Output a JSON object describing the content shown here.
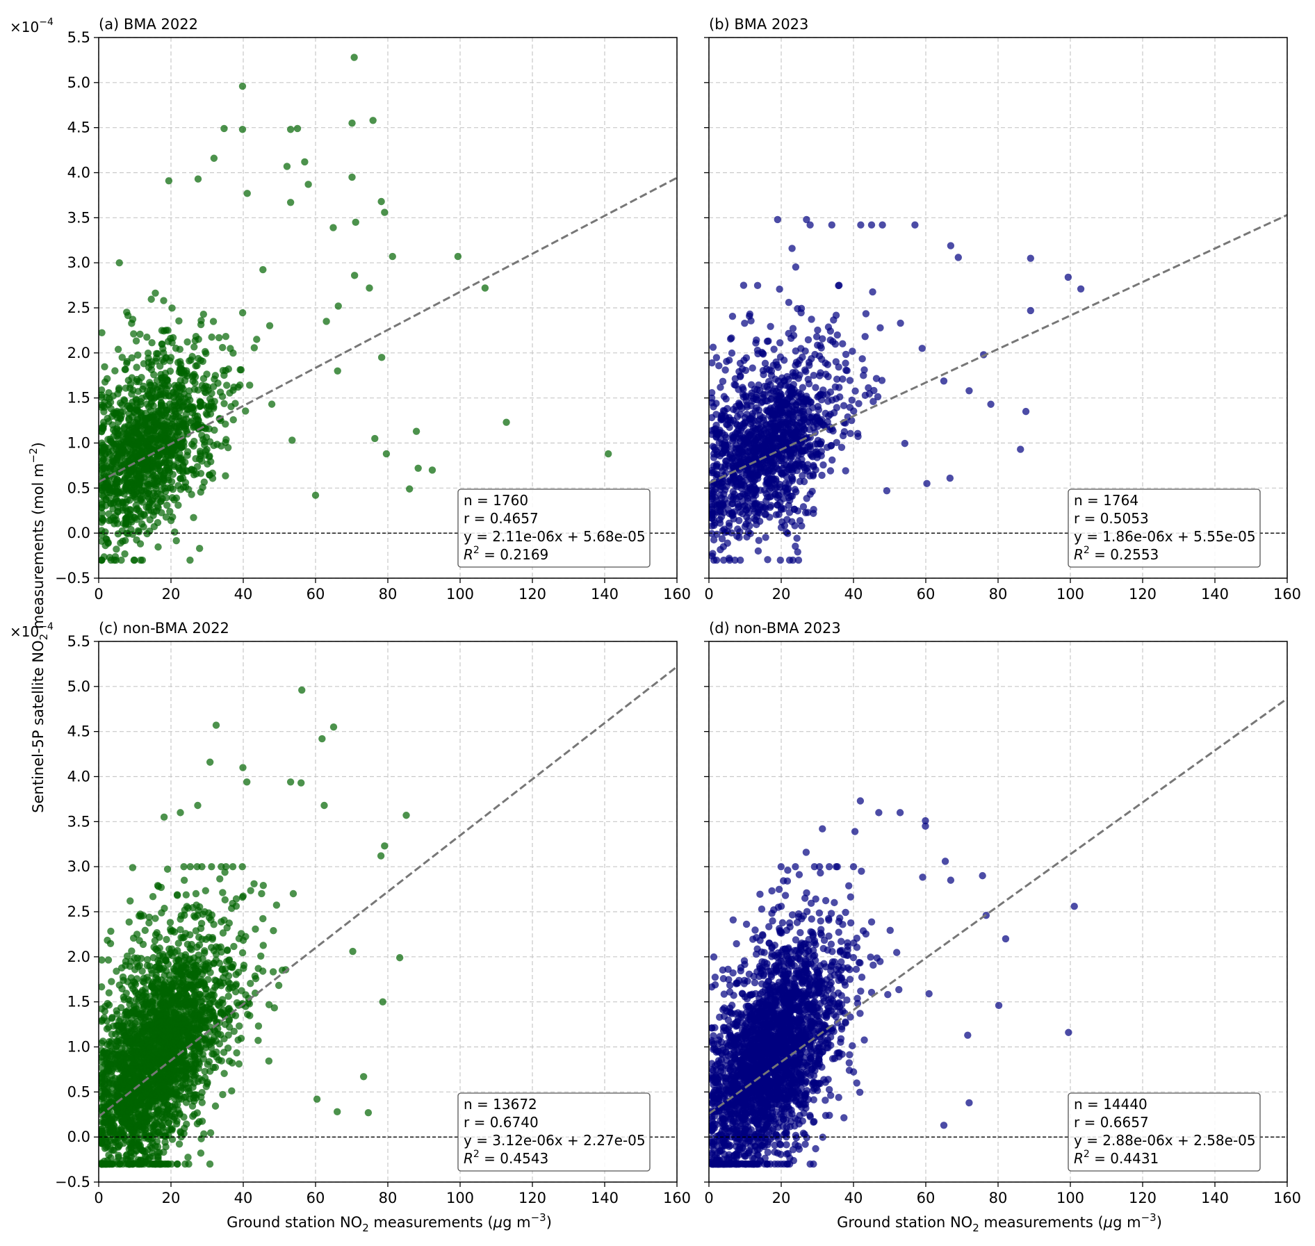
{
  "figure": {
    "y_scale_label_base": "×10",
    "y_scale_label_exp": "−4",
    "ylabel_prefix": "Sentinel-5P satellite NO",
    "ylabel_sub": "2",
    "ylabel_suffix": " measurements (mol m",
    "ylabel_exp": "−2",
    "ylabel_end": ")",
    "xlabel_prefix": "Ground station NO",
    "xlabel_sub": "2",
    "xlabel_suffix": " measurements (",
    "xlabel_mu": "μ",
    "xlabel_unit": "g m",
    "xlabel_exp": "−3",
    "xlabel_end": ")"
  },
  "chart_data": [
    {
      "type": "scatter",
      "panel_title": "(a) BMA 2022",
      "color": "#006400",
      "xlim": [
        0,
        160
      ],
      "ylim": [
        -0.5,
        5.5
      ],
      "y_multiplier": "1e-4",
      "xticks": [
        0,
        20,
        40,
        60,
        80,
        100,
        120,
        140,
        160
      ],
      "yticks": [
        -0.5,
        0.0,
        0.5,
        1.0,
        1.5,
        2.0,
        2.5,
        3.0,
        3.5,
        4.0,
        4.5,
        5.0,
        5.5
      ],
      "grid": true,
      "stats": {
        "n": "n = 1760",
        "r": "r = 0.4657",
        "eq": "y = 2.11e-06x + 5.68e-05",
        "r2_label": "R",
        "r2_exp": "2",
        "r2_value": " = 0.2169"
      },
      "fit": {
        "slope": 0.0211,
        "intercept": 0.568
      },
      "n_points": 1760,
      "points": [
        [
          70.7,
          5.28
        ],
        [
          39.8,
          4.96
        ],
        [
          75.9,
          4.58
        ],
        [
          70.1,
          4.55
        ],
        [
          34.7,
          4.49
        ],
        [
          39.8,
          4.48
        ],
        [
          53.1,
          4.48
        ],
        [
          55.0,
          4.49
        ],
        [
          57.0,
          4.12
        ],
        [
          31.9,
          4.16
        ],
        [
          52.1,
          4.07
        ],
        [
          70.1,
          3.95
        ],
        [
          27.5,
          3.93
        ],
        [
          58.0,
          3.87
        ],
        [
          19.4,
          3.91
        ],
        [
          41.1,
          3.77
        ],
        [
          53.1,
          3.67
        ],
        [
          79.1,
          3.56
        ],
        [
          78.2,
          3.68
        ],
        [
          64.9,
          3.39
        ],
        [
          71.1,
          3.45
        ],
        [
          99.4,
          3.07
        ],
        [
          81.3,
          3.07
        ],
        [
          106.9,
          2.72
        ],
        [
          112.8,
          1.23
        ],
        [
          141.0,
          0.88
        ],
        [
          92.3,
          0.7
        ],
        [
          87.9,
          1.13
        ],
        [
          86.0,
          0.49
        ],
        [
          78.3,
          1.95
        ],
        [
          74.9,
          2.72
        ],
        [
          70.8,
          2.86
        ],
        [
          66.3,
          2.52
        ],
        [
          63.0,
          2.35
        ],
        [
          66.1,
          1.8
        ],
        [
          76.4,
          1.05
        ],
        [
          79.6,
          0.88
        ],
        [
          88.4,
          0.72
        ],
        [
          60.0,
          0.42
        ]
      ],
      "cluster": {
        "cx": 14,
        "cy": 0.85,
        "sx": 10,
        "sy": 0.45,
        "count": 1300,
        "seed": 11
      }
    },
    {
      "type": "scatter",
      "panel_title": "(b) BMA 2023",
      "color": "#000080",
      "xlim": [
        0,
        160
      ],
      "ylim": [
        -0.5,
        5.5
      ],
      "y_multiplier": "1e-4",
      "xticks": [
        0,
        20,
        40,
        60,
        80,
        100,
        120,
        140,
        160
      ],
      "yticks": [
        -0.5,
        0.0,
        0.5,
        1.0,
        1.5,
        2.0,
        2.5,
        3.0,
        3.5,
        4.0,
        4.5,
        5.0,
        5.5
      ],
      "grid": true,
      "stats": {
        "n": "n = 1764",
        "r": "r = 0.5053",
        "eq": "y = 1.86e-06x + 5.55e-05",
        "r2_label": "R",
        "r2_exp": "2",
        "r2_value": " = 0.2553"
      },
      "fit": {
        "slope": 0.0186,
        "intercept": 0.555
      },
      "n_points": 1764,
      "points": [
        [
          19.0,
          3.48
        ],
        [
          27.0,
          3.48
        ],
        [
          34.0,
          3.42
        ],
        [
          42.0,
          3.42
        ],
        [
          45.0,
          3.42
        ],
        [
          48.0,
          3.42
        ],
        [
          57.0,
          3.42
        ],
        [
          23.0,
          3.16
        ],
        [
          28.0,
          3.42
        ],
        [
          66.9,
          3.19
        ],
        [
          69.0,
          3.06
        ],
        [
          89.0,
          3.05
        ],
        [
          99.4,
          2.84
        ],
        [
          102.9,
          2.71
        ],
        [
          89.0,
          2.47
        ],
        [
          86.2,
          0.93
        ],
        [
          87.7,
          1.35
        ],
        [
          78.0,
          1.43
        ],
        [
          76.0,
          1.98
        ],
        [
          66.7,
          0.61
        ],
        [
          60.3,
          0.55
        ],
        [
          72.0,
          1.58
        ],
        [
          59.0,
          2.05
        ],
        [
          53.0,
          2.33
        ],
        [
          9.6,
          2.75
        ],
        [
          22.1,
          2.56
        ],
        [
          36.0,
          2.75
        ]
      ],
      "cluster": {
        "cx": 16,
        "cy": 0.85,
        "sx": 11,
        "sy": 0.45,
        "count": 1300,
        "seed": 23
      }
    },
    {
      "type": "scatter",
      "panel_title": "(c) non-BMA 2022",
      "color": "#006400",
      "xlim": [
        0,
        160
      ],
      "ylim": [
        -0.5,
        5.5
      ],
      "y_multiplier": "1e-4",
      "xticks": [
        0,
        20,
        40,
        60,
        80,
        100,
        120,
        140,
        160
      ],
      "yticks": [
        -0.5,
        0.0,
        0.5,
        1.0,
        1.5,
        2.0,
        2.5,
        3.0,
        3.5,
        4.0,
        4.5,
        5.0,
        5.5
      ],
      "grid": true,
      "stats": {
        "n": "n = 13672",
        "r": "r = 0.6740",
        "eq": "y = 3.12e-06x + 2.27e-05",
        "r2_label": "R",
        "r2_exp": "2",
        "r2_value": " = 0.4543"
      },
      "fit": {
        "slope": 0.0312,
        "intercept": 0.227
      },
      "n_points": 13672,
      "points": [
        [
          56.2,
          4.96
        ],
        [
          32.5,
          4.57
        ],
        [
          65.0,
          4.55
        ],
        [
          61.8,
          4.42
        ],
        [
          39.9,
          4.1
        ],
        [
          30.8,
          4.16
        ],
        [
          41.0,
          3.94
        ],
        [
          53.1,
          3.94
        ],
        [
          56.0,
          3.93
        ],
        [
          62.4,
          3.68
        ],
        [
          85.1,
          3.57
        ],
        [
          18.1,
          3.55
        ],
        [
          79.1,
          3.23
        ],
        [
          78.1,
          3.12
        ],
        [
          83.3,
          1.99
        ],
        [
          73.3,
          0.67
        ],
        [
          74.6,
          0.27
        ],
        [
          66.0,
          0.28
        ],
        [
          60.4,
          0.42
        ],
        [
          78.6,
          1.5
        ],
        [
          70.3,
          2.06
        ],
        [
          11.7,
          2.45
        ],
        [
          8.7,
          2.62
        ],
        [
          9.4,
          2.99
        ],
        [
          22.6,
          3.6
        ],
        [
          27.4,
          3.68
        ]
      ],
      "cluster": {
        "cx": 16,
        "cy": 0.85,
        "sx": 10,
        "sy": 0.55,
        "count": 2600,
        "seed": 37
      }
    },
    {
      "type": "scatter",
      "panel_title": "(d) non-BMA 2023",
      "color": "#000080",
      "xlim": [
        0,
        160
      ],
      "ylim": [
        -0.5,
        5.5
      ],
      "y_multiplier": "1e-4",
      "xticks": [
        0,
        20,
        40,
        60,
        80,
        100,
        120,
        140,
        160
      ],
      "yticks": [
        -0.5,
        0.0,
        0.5,
        1.0,
        1.5,
        2.0,
        2.5,
        3.0,
        3.5,
        4.0,
        4.5,
        5.0,
        5.5
      ],
      "grid": true,
      "stats": {
        "n": "n = 14440",
        "r": "r = 0.6657",
        "eq": "y = 2.88e-06x + 2.58e-05",
        "r2_label": "R",
        "r2_exp": "2",
        "r2_value": " = 0.4431"
      },
      "fit": {
        "slope": 0.0288,
        "intercept": 0.258
      },
      "n_points": 14440,
      "points": [
        [
          41.9,
          3.73
        ],
        [
          47.0,
          3.6
        ],
        [
          52.9,
          3.6
        ],
        [
          59.9,
          3.51
        ],
        [
          59.9,
          3.45
        ],
        [
          40.4,
          3.39
        ],
        [
          31.4,
          3.42
        ],
        [
          26.9,
          3.16
        ],
        [
          21.8,
          2.96
        ],
        [
          66.9,
          2.85
        ],
        [
          65.4,
          3.06
        ],
        [
          75.7,
          2.9
        ],
        [
          101.1,
          2.56
        ],
        [
          80.2,
          1.46
        ],
        [
          82.1,
          2.2
        ],
        [
          99.5,
          1.16
        ],
        [
          72.0,
          0.38
        ],
        [
          65.0,
          0.13
        ],
        [
          71.6,
          1.13
        ],
        [
          76.7,
          2.46
        ],
        [
          60.9,
          1.59
        ]
      ],
      "cluster": {
        "cx": 17,
        "cy": 0.85,
        "sx": 10,
        "sy": 0.55,
        "count": 2600,
        "seed": 53
      }
    }
  ]
}
